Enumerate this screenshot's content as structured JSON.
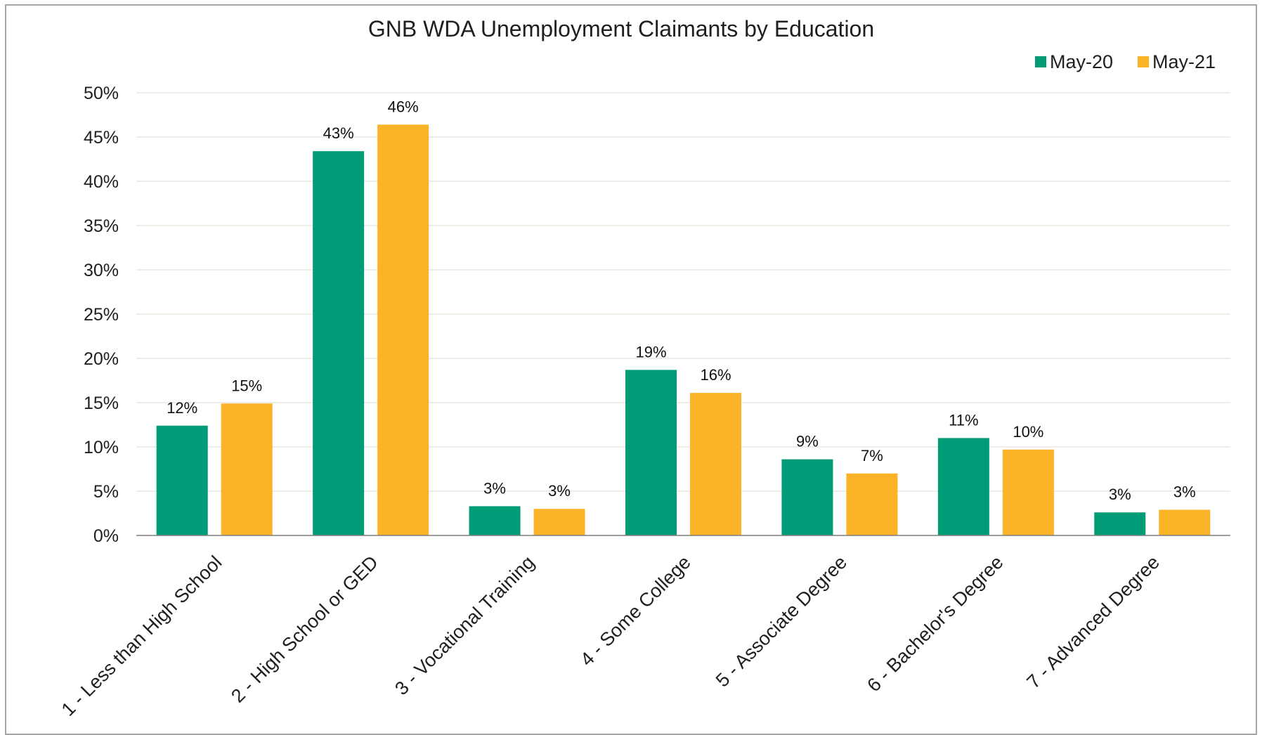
{
  "chart_data": {
    "type": "bar",
    "title": "GNB WDA Unemployment Claimants by Education",
    "xlabel": "",
    "ylabel": "",
    "ylim": [
      0,
      50
    ],
    "y_ticks": [
      0,
      5,
      10,
      15,
      20,
      25,
      30,
      35,
      40,
      45,
      50
    ],
    "y_tick_format": "percent",
    "grid": true,
    "legend_position": "top-right",
    "categories": [
      "1 - Less than High School",
      "2 - High School or GED",
      "3 - Vocational Training",
      "4 - Some College",
      "5 - Associate Degree",
      "6 - Bachelor's Degree",
      "7 - Advanced Degree"
    ],
    "series": [
      {
        "name": "May-20",
        "color": "#009B77",
        "values": [
          12.4,
          43.4,
          3.3,
          18.7,
          8.6,
          11.0,
          2.6
        ],
        "labels": [
          "12%",
          "43%",
          "3%",
          "19%",
          "9%",
          "11%",
          "3%"
        ]
      },
      {
        "name": "May-21",
        "color": "#FBB427",
        "values": [
          14.9,
          46.4,
          3.0,
          16.1,
          7.0,
          9.7,
          2.9
        ],
        "labels": [
          "15%",
          "46%",
          "3%",
          "16%",
          "7%",
          "10%",
          "3%"
        ]
      }
    ]
  }
}
